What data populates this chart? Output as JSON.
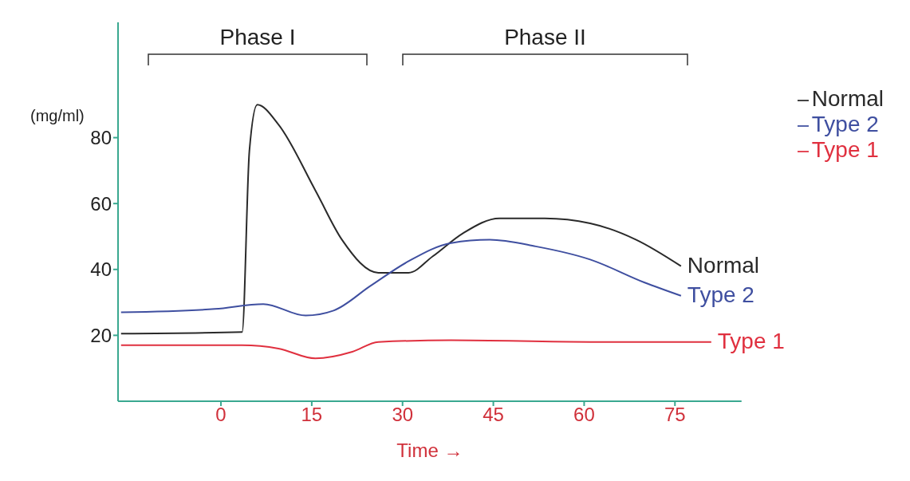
{
  "chart_data": {
    "type": "line",
    "xlabel": "Time →",
    "ylabel": "(mg/ml)",
    "xlim": [
      -17,
      86
    ],
    "xticks": [
      0,
      15,
      30,
      45,
      60,
      75
    ],
    "ylim": [
      0,
      115
    ],
    "yticks": [
      20,
      40,
      60,
      80
    ],
    "grid": false,
    "legend": "top right",
    "marker": "none",
    "line_style": "solid",
    "annotations": [
      "Phase I",
      "Phase II"
    ],
    "series": [
      {
        "name": "Normal",
        "color": "#2a2a2a",
        "x": [
          -16.5,
          3.5,
          4.7,
          6,
          9.5,
          15.6,
          20,
          26,
          31,
          35,
          40,
          46,
          53.5,
          61,
          68.6,
          76
        ],
        "values": [
          20.5,
          21,
          76,
          90,
          84,
          64,
          49,
          39,
          39,
          44,
          51,
          55.5,
          55.5,
          54,
          49,
          41
        ]
      },
      {
        "name": "Type 2",
        "color": "#3f4fa0",
        "x": [
          -16.5,
          -1,
          7,
          14,
          18.6,
          24.7,
          31,
          38,
          44.4,
          52,
          61,
          70,
          76
        ],
        "values": [
          27,
          28,
          29.5,
          26,
          27.5,
          35,
          42.5,
          48,
          49,
          47,
          43,
          36,
          32
        ]
      },
      {
        "name": "Type 1",
        "color": "#e0303f",
        "x": [
          -16.5,
          3.5,
          9.5,
          15.6,
          21.7,
          26,
          38,
          61,
          81
        ],
        "values": [
          17,
          17,
          16,
          13,
          15,
          18,
          18.5,
          18,
          18
        ]
      }
    ]
  }
}
